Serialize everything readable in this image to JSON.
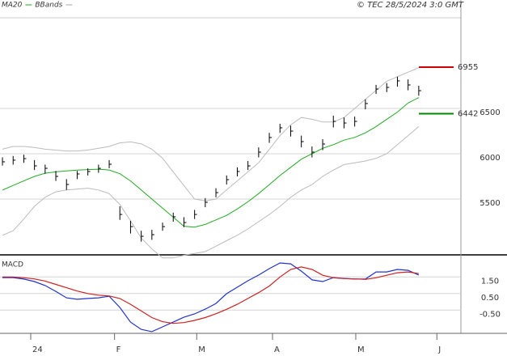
{
  "chart_data": [
    {
      "type": "ohlc",
      "legend": [
        {
          "name": "MA20",
          "color": "#22aa22"
        },
        {
          "name": "BBands",
          "color": "#aaaaaa"
        }
      ],
      "annotation": "© TEC 28/5/2024 3:0 GMT",
      "x": [
        0,
        1,
        2,
        3,
        4,
        5,
        6,
        7,
        8,
        9,
        10,
        11,
        12,
        13,
        14,
        15,
        16,
        17,
        18,
        19,
        20,
        21,
        22,
        23,
        24,
        25,
        26,
        27,
        28,
        29,
        30,
        31,
        32,
        33,
        34,
        35,
        36,
        37,
        38,
        39
      ],
      "high": [
        5960,
        5975,
        5990,
        5930,
        5880,
        5810,
        5720,
        5810,
        5840,
        5880,
        5930,
        5420,
        5260,
        5150,
        5160,
        5240,
        5350,
        5300,
        5380,
        5510,
        5620,
        5760,
        5850,
        5920,
        6070,
        6230,
        6330,
        6310,
        6200,
        6080,
        6160,
        6420,
        6400,
        6410,
        6600,
        6760,
        6780,
        6850,
        6820,
        6750
      ],
      "low": [
        5870,
        5880,
        5900,
        5820,
        5780,
        5700,
        5600,
        5720,
        5760,
        5790,
        5840,
        5270,
        5120,
        5030,
        5050,
        5150,
        5250,
        5190,
        5280,
        5410,
        5520,
        5660,
        5750,
        5820,
        5960,
        6120,
        6230,
        6190,
        6070,
        5960,
        6040,
        6290,
        6280,
        6300,
        6490,
        6660,
        6680,
        6740,
        6700,
        6640
      ],
      "close": [
        5911,
        5929,
        5946,
        5866,
        5839,
        5750,
        5661,
        5777,
        5804,
        5839,
        5884,
        5330,
        5196,
        5089,
        5107,
        5196,
        5304,
        5241,
        5330,
        5464,
        5571,
        5714,
        5804,
        5866,
        6018,
        6179,
        6286,
        6250,
        6134,
        6018,
        6107,
        6357,
        6339,
        6357,
        6554,
        6714,
        6732,
        6804,
        6759,
        6696
      ],
      "series": [
        {
          "name": "MA20",
          "color": "#22aa22",
          "values": [
            5598,
            5650,
            5700,
            5750,
            5785,
            5800,
            5810,
            5820,
            5825,
            5830,
            5821,
            5780,
            5700,
            5600,
            5500,
            5400,
            5300,
            5200,
            5190,
            5220,
            5270,
            5320,
            5390,
            5470,
            5560,
            5660,
            5760,
            5850,
            5940,
            6000,
            6060,
            6100,
            6150,
            6180,
            6230,
            6300,
            6380,
            6460,
            6560,
            6620
          ]
        },
        {
          "name": "BBands",
          "color": "#bbbbbb",
          "values": [
            6050,
            6080,
            6080,
            6070,
            6050,
            6040,
            6030,
            6030,
            6040,
            6060,
            6080,
            6120,
            6130,
            6110,
            6050,
            5950,
            5800,
            5650,
            5500,
            5480,
            5500,
            5600,
            5700,
            5800,
            5900,
            6050,
            6200,
            6320,
            6400,
            6380,
            6350,
            6350,
            6400,
            6500,
            6600,
            6700,
            6800,
            6850,
            6900,
            6950
          ]
        },
        {
          "name": "BBands",
          "color": "#bbbbbb",
          "values": [
            5100,
            5150,
            5280,
            5420,
            5520,
            5580,
            5600,
            5610,
            5620,
            5600,
            5560,
            5440,
            5260,
            5070,
            4950,
            4850,
            4850,
            4880,
            4900,
            4920,
            4980,
            5040,
            5100,
            5170,
            5250,
            5330,
            5420,
            5520,
            5600,
            5660,
            5750,
            5820,
            5880,
            5900,
            5920,
            5950,
            6000,
            6100,
            6200,
            6300
          ]
        }
      ],
      "markers": [
        {
          "value": 6955,
          "color": "#cc0000"
        },
        {
          "value": 6442,
          "color": "#008800"
        }
      ],
      "bar_color": "#000000",
      "xlim": [
        -0.23,
        42.95
      ],
      "ylim": [
        4893,
        7500
      ],
      "yticks": [
        5500,
        6000,
        6500
      ],
      "grid": true
    },
    {
      "type": "line",
      "title": "MACD",
      "x": [
        0,
        1,
        2,
        3,
        4,
        5,
        6,
        7,
        8,
        9,
        10,
        11,
        12,
        13,
        14,
        15,
        16,
        17,
        18,
        19,
        20,
        21,
        22,
        23,
        24,
        25,
        26,
        27,
        28,
        29,
        30,
        31,
        32,
        33,
        34,
        35,
        36,
        37,
        38,
        39
      ],
      "series": [
        {
          "color": "#2233cc",
          "values": [
            1.46,
            1.46,
            1.37,
            1.22,
            0.98,
            0.63,
            0.24,
            0.15,
            0.2,
            0.24,
            0.34,
            -0.34,
            -1.22,
            -1.66,
            -1.8,
            -1.51,
            -1.22,
            -0.93,
            -0.73,
            -0.44,
            -0.1,
            0.49,
            0.88,
            1.27,
            1.61,
            2.0,
            2.34,
            2.29,
            1.85,
            1.32,
            1.22,
            1.46,
            1.41,
            1.37,
            1.37,
            1.8,
            1.8,
            1.95,
            1.9,
            1.61
          ]
        },
        {
          "color": "#cc2222",
          "values": [
            1.5,
            1.5,
            1.45,
            1.38,
            1.25,
            1.05,
            0.85,
            0.65,
            0.5,
            0.4,
            0.35,
            0.2,
            -0.15,
            -0.55,
            -0.95,
            -1.2,
            -1.3,
            -1.25,
            -1.12,
            -0.95,
            -0.72,
            -0.45,
            -0.15,
            0.2,
            0.55,
            0.95,
            1.5,
            1.95,
            2.1,
            1.95,
            1.6,
            1.45,
            1.4,
            1.38,
            1.35,
            1.45,
            1.6,
            1.75,
            1.8,
            1.7
          ]
        }
      ],
      "xlim": [
        -0.23,
        42.95
      ],
      "ylim": [
        -1.9,
        2.78
      ],
      "yticks": [
        {
          "value": 1.5,
          "label": "1.50"
        },
        {
          "value": 0.5,
          "label": "0.50"
        },
        {
          "value": -0.5,
          "label": "-0.50"
        }
      ],
      "xticks": [
        {
          "value": 2.65,
          "label": "24"
        },
        {
          "value": 10.5,
          "label": "F"
        },
        {
          "value": 18.2,
          "label": "M"
        },
        {
          "value": 25.3,
          "label": "A"
        },
        {
          "value": 33.1,
          "label": "M"
        },
        {
          "value": 40.7,
          "label": "J"
        }
      ],
      "grid": true
    }
  ]
}
